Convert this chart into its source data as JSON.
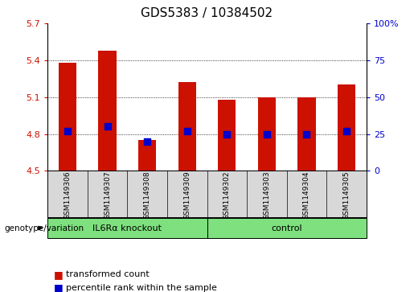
{
  "title": "GDS5383 / 10384502",
  "samples": [
    "GSM1149306",
    "GSM1149307",
    "GSM1149308",
    "GSM1149309",
    "GSM1149302",
    "GSM1149303",
    "GSM1149304",
    "GSM1149305"
  ],
  "transformed_counts": [
    5.38,
    5.48,
    4.75,
    5.22,
    5.08,
    5.1,
    5.1,
    5.2
  ],
  "percentile_ranks": [
    27,
    30,
    20,
    27,
    25,
    25,
    25,
    27
  ],
  "ylim_left": [
    4.5,
    5.7
  ],
  "ylim_right": [
    0,
    100
  ],
  "yticks_left": [
    4.5,
    4.8,
    5.1,
    5.4,
    5.7
  ],
  "ytick_labels_left": [
    "4.5",
    "4.8",
    "5.1",
    "5.4",
    "5.7"
  ],
  "yticks_right": [
    0,
    25,
    50,
    75,
    100
  ],
  "ytick_labels_right": [
    "0",
    "25",
    "50",
    "75",
    "100%"
  ],
  "gridlines_at": [
    4.8,
    5.1,
    5.4
  ],
  "groups": [
    {
      "label": "IL6Rα knockout",
      "start": 0,
      "end": 4,
      "color": "#7EE07E"
    },
    {
      "label": "control",
      "start": 4,
      "end": 8,
      "color": "#7EE07E"
    }
  ],
  "bar_color": "#CC1100",
  "dot_color": "#0000CC",
  "bar_bottom": 4.5,
  "bar_width": 0.45,
  "dot_size": 28,
  "legend_items": [
    {
      "label": "transformed count",
      "color": "#CC1100"
    },
    {
      "label": "percentile rank within the sample",
      "color": "#0000CC"
    }
  ],
  "left_color": "#CC1100",
  "right_color": "#0000CC",
  "axis_bg_color": "#D8D8D8",
  "plot_bg_color": "#FFFFFF",
  "genotype_label": "genotype/variation",
  "title_fontsize": 11,
  "tick_fontsize": 8,
  "sample_fontsize": 6.5,
  "group_fontsize": 8,
  "legend_fontsize": 8
}
